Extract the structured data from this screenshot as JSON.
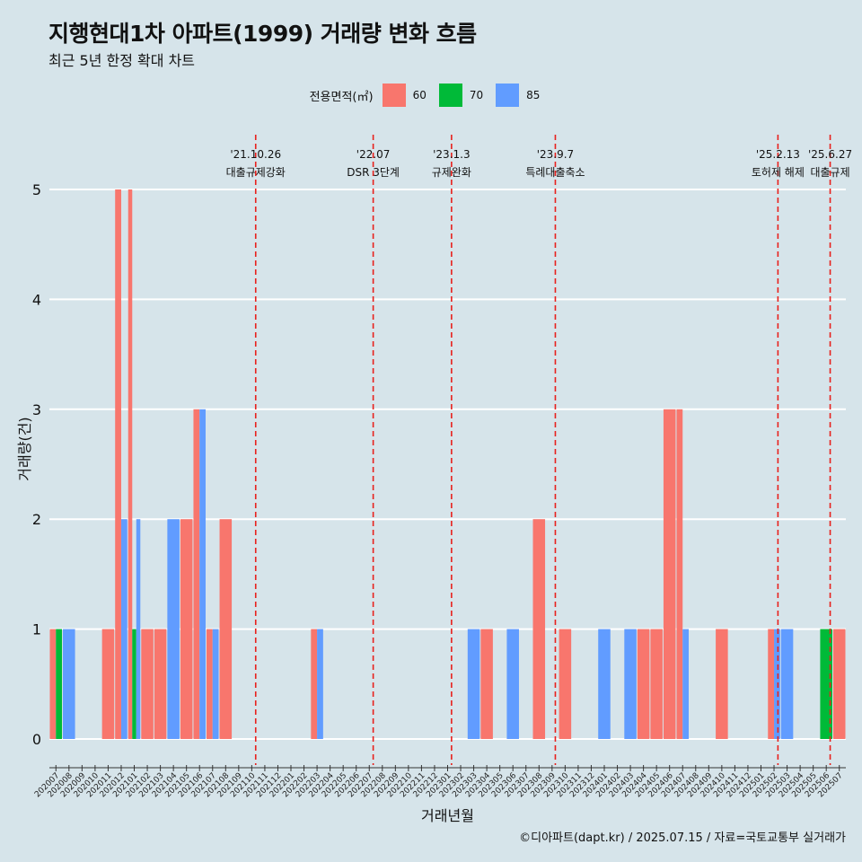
{
  "header": {
    "title": "지행현대1차 아파트(1999) 거래량 변화 흐름",
    "subtitle": "최근 5년 한정 확대 차트"
  },
  "caption": "©디아파트(dapt.kr) / 2025.07.15 / 자료=국토교통부 실거래가",
  "legend": {
    "title": "전용면적(㎡)",
    "items": [
      {
        "label": "60",
        "color": "#F8766D"
      },
      {
        "label": "70",
        "color": "#00BA38"
      },
      {
        "label": "85",
        "color": "#619CFF"
      }
    ]
  },
  "chart_data": {
    "type": "bar",
    "xlabel": "거래년월",
    "ylabel": "거래량(건)",
    "ylim": [
      0,
      5
    ],
    "yticks": [
      0,
      1,
      2,
      3,
      4,
      5
    ],
    "grid": true,
    "legend_position": "top",
    "categories": [
      "202007",
      "202008",
      "202009",
      "202010",
      "202011",
      "202012",
      "202101",
      "202102",
      "202103",
      "202104",
      "202105",
      "202106",
      "202107",
      "202108",
      "202109",
      "202110",
      "202111",
      "202112",
      "202201",
      "202202",
      "202203",
      "202204",
      "202205",
      "202206",
      "202207",
      "202208",
      "202209",
      "202210",
      "202211",
      "202212",
      "202301",
      "202302",
      "202303",
      "202304",
      "202305",
      "202306",
      "202307",
      "202308",
      "202309",
      "202310",
      "202311",
      "202312",
      "202401",
      "202402",
      "202403",
      "202404",
      "202405",
      "202406",
      "202407",
      "202408",
      "202409",
      "202410",
      "202411",
      "202412",
      "202501",
      "202502",
      "202503",
      "202504",
      "202505",
      "202506",
      "202507"
    ],
    "series": [
      {
        "name": "60",
        "color": "#F8766D",
        "values": [
          1,
          0,
          0,
          0,
          1,
          5,
          5,
          1,
          1,
          0,
          2,
          3,
          1,
          2,
          0,
          0,
          0,
          0,
          0,
          0,
          1,
          0,
          0,
          0,
          0,
          0,
          0,
          0,
          0,
          0,
          0,
          0,
          0,
          1,
          0,
          0,
          0,
          2,
          0,
          1,
          0,
          0,
          0,
          0,
          0,
          1,
          1,
          3,
          3,
          0,
          0,
          1,
          0,
          0,
          0,
          1,
          0,
          0,
          0,
          0,
          1
        ]
      },
      {
        "name": "70",
        "color": "#00BA38",
        "values": [
          1,
          0,
          0,
          0,
          0,
          0,
          1,
          0,
          0,
          0,
          0,
          0,
          0,
          0,
          0,
          0,
          0,
          0,
          0,
          0,
          0,
          0,
          0,
          0,
          0,
          0,
          0,
          0,
          0,
          0,
          0,
          0,
          0,
          0,
          0,
          0,
          0,
          0,
          0,
          0,
          0,
          0,
          0,
          0,
          0,
          0,
          0,
          0,
          0,
          0,
          0,
          0,
          0,
          0,
          0,
          0,
          0,
          0,
          0,
          1,
          0
        ]
      },
      {
        "name": "85",
        "color": "#619CFF",
        "values": [
          0,
          1,
          0,
          0,
          0,
          2,
          2,
          0,
          0,
          2,
          0,
          3,
          1,
          0,
          0,
          0,
          0,
          0,
          0,
          0,
          1,
          0,
          0,
          0,
          0,
          0,
          0,
          0,
          0,
          0,
          0,
          0,
          1,
          0,
          0,
          1,
          0,
          0,
          0,
          0,
          0,
          0,
          1,
          0,
          1,
          0,
          0,
          0,
          1,
          0,
          0,
          0,
          0,
          0,
          0,
          1,
          1,
          0,
          0,
          0,
          0
        ]
      }
    ],
    "annotations": [
      {
        "date": "'21.10.26",
        "label": "대출규제강화",
        "x_index": 15.3
      },
      {
        "date": "'22.07",
        "label": "DSR 3단계",
        "x_index": 24.3
      },
      {
        "date": "'23.1.3",
        "label": "규제완화",
        "x_index": 30.3
      },
      {
        "date": "'23.9.7",
        "label": "특례대출축소",
        "x_index": 38.25
      },
      {
        "date": "'25.2.13",
        "label": "토허제 해제",
        "x_index": 55.3
      },
      {
        "date": "'25.6.27",
        "label": "대출규제",
        "x_index": 59.3
      }
    ]
  }
}
